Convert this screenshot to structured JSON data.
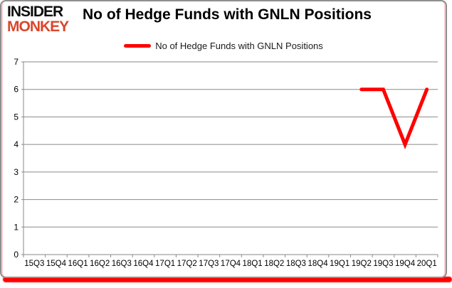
{
  "logo": {
    "line1": "INSIDER",
    "line2": "MONKEY"
  },
  "header": {
    "title": "No of Hedge Funds with GNLN Positions"
  },
  "legend": {
    "label": "No of Hedge Funds with GNLN Positions"
  },
  "colors": {
    "line": "#ff0000",
    "grid": "#8a8a8a",
    "axis": "#8a8a8a",
    "tick_text": "#000000",
    "logo_accent": "#d9472b",
    "frame_border": "#8f8f8f",
    "bottom_shadow": "#ff0000"
  },
  "chart_data": {
    "type": "line",
    "title": "No of Hedge Funds with GNLN Positions",
    "categories": [
      "15Q3",
      "15Q4",
      "16Q1",
      "16Q2",
      "16Q3",
      "16Q4",
      "17Q1",
      "17Q2",
      "17Q3",
      "17Q4",
      "18Q1",
      "18Q2",
      "18Q3",
      "18Q4",
      "19Q1",
      "19Q2",
      "19Q3",
      "19Q4",
      "20Q1"
    ],
    "series": [
      {
        "name": "No of Hedge Funds with GNLN Positions",
        "color": "#ff0000",
        "values": [
          null,
          null,
          null,
          null,
          null,
          null,
          null,
          null,
          null,
          null,
          null,
          null,
          null,
          null,
          null,
          6,
          6,
          4,
          6
        ]
      }
    ],
    "ylim": [
      0,
      7
    ],
    "yticks": [
      0,
      1,
      2,
      3,
      4,
      5,
      6,
      7
    ],
    "grid": true,
    "legend_position": "top-center"
  }
}
